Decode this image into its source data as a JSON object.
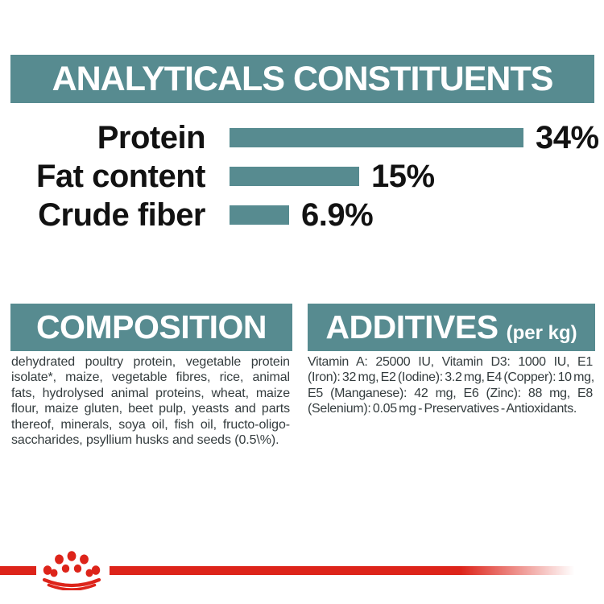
{
  "chart_data": {
    "type": "bar",
    "orientation": "horizontal",
    "title": "ANALYTICALS CONSTITUENTS",
    "categories": [
      "Protein",
      "Fat content",
      "Crude fiber"
    ],
    "values": [
      34,
      15,
      6.9
    ],
    "value_labels": [
      "34%",
      "15%",
      "6.9%"
    ],
    "unit": "%",
    "xlim": [
      0,
      40
    ],
    "bar_color": "#578b90",
    "grid": false,
    "legend": false
  },
  "composition": {
    "heading": "COMPOSITION",
    "lines": [
      "dehydrated poultry protein, vegetable protein",
      "isolate*, maize, vegetable fibres, rice, animal",
      "fats, hydrolysed animal proteins, wheat, maize",
      "flour, maize gluten, beet pulp, yeasts and parts",
      "thereof, minerals, soya oil, fish oil, fructo-oligo-",
      "saccharides, psyllium husks and seeds (0.5\\%)."
    ]
  },
  "additives": {
    "heading": "ADDITIVES",
    "heading_suffix": "(per kg)",
    "lines": [
      "Vitamin A: 25000 IU, Vitamin D3: 1000 IU, E1",
      "(Iron): 32 mg, E2 (Iodine): 3.2 mg, E4 (Copper): 10 mg,",
      "E5 (Manganese): 42 mg, E6 (Zinc): 88 mg, E8",
      "(Selenium): 0.05 mg - Preservatives - Antioxidants."
    ]
  },
  "footer": {
    "logo": "royal-canin-crown-icon"
  },
  "colors": {
    "teal": "#578b90",
    "red": "#dd241a",
    "body_text": "#343c3e",
    "label_text": "#121212",
    "background": "#ffffff"
  }
}
